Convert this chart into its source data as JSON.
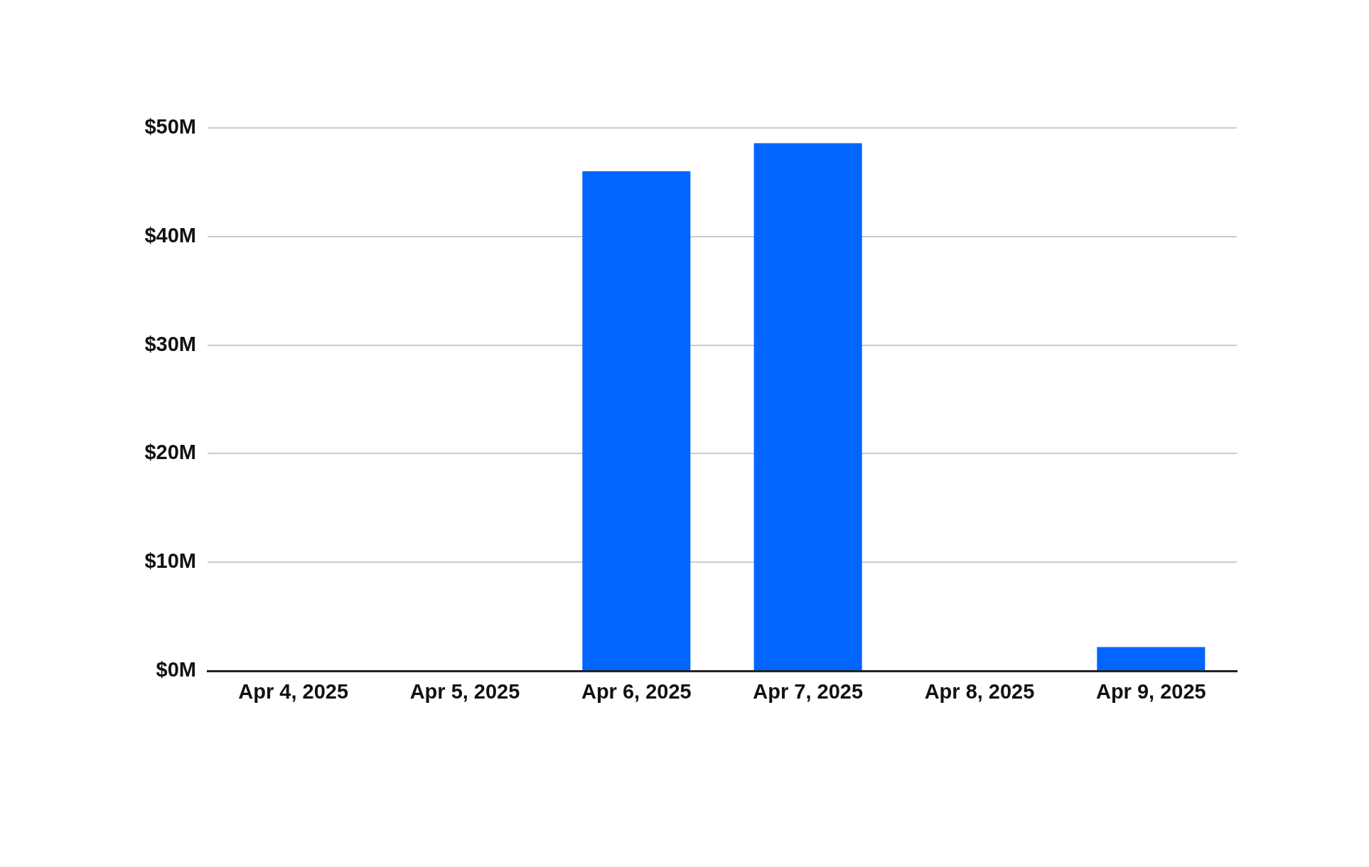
{
  "chart_data": {
    "type": "bar",
    "categories": [
      "Apr 4, 2025",
      "Apr 5, 2025",
      "Apr 6, 2025",
      "Apr 7, 2025",
      "Apr 8, 2025",
      "Apr 9, 2025"
    ],
    "values": [
      0,
      0,
      46,
      48.6,
      0,
      2.2
    ],
    "color": "#0066ff",
    "ylim": [
      0,
      50
    ],
    "yticks": [
      {
        "value": 0,
        "label": "$0M"
      },
      {
        "value": 10,
        "label": "$10M"
      },
      {
        "value": 20,
        "label": "$20M"
      },
      {
        "value": 30,
        "label": "$30M"
      },
      {
        "value": 40,
        "label": "$40M"
      },
      {
        "value": 50,
        "label": "$50M"
      }
    ],
    "grid": "y"
  }
}
